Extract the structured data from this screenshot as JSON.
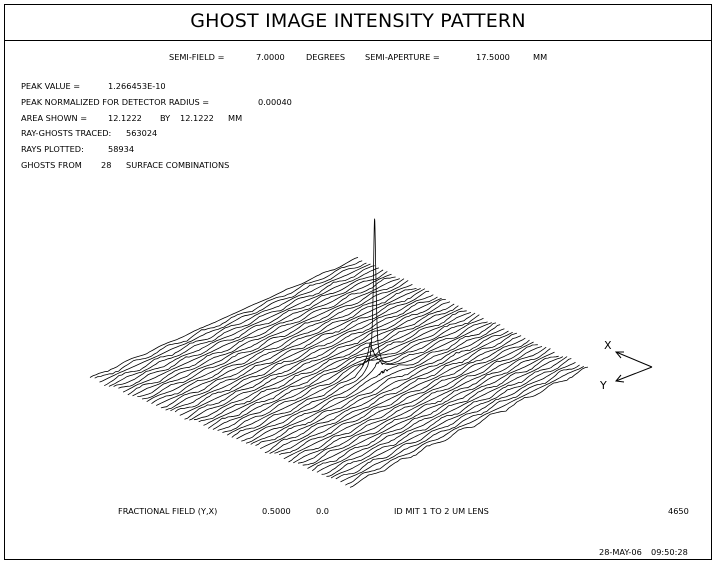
{
  "header": {
    "title": "GHOST IMAGE INTENSITY PATTERN",
    "semi_field_label": "SEMI-FIELD =",
    "semi_field_value": "7.0000",
    "semi_field_unit": "DEGREES",
    "semi_aperture_label": "SEMI-APERTURE =",
    "semi_aperture_value": "17.5000",
    "semi_aperture_unit": "MM"
  },
  "info": {
    "peak_value_label": "PEAK VALUE =",
    "peak_value": "1.266453E-10",
    "peak_normalized_label": "PEAK NORMALIZED FOR DETECTOR RADIUS =",
    "peak_normalized_value": "0.00040",
    "area_shown_label": "AREA SHOWN =",
    "area_shown_x": "12.1222",
    "area_by": "BY",
    "area_shown_y": "12.1222",
    "area_unit": "MM",
    "ray_ghosts_label": "RAY-GHOSTS TRACED:",
    "ray_ghosts_value": "563024",
    "rays_plotted_label": "RAYS PLOTTED:",
    "rays_plotted_value": "58934",
    "ghosts_from_label": "GHOSTS FROM",
    "ghosts_from_value": "28",
    "ghosts_from_suffix": "SURFACE COMBINATIONS"
  },
  "axes_triad": {
    "x_label": "X",
    "y_label": "Y"
  },
  "footer": {
    "fractional_field_label": "FRACTIONAL FIELD (Y,X)",
    "fractional_field_y": "0.5000",
    "fractional_field_x": "0.0",
    "lens_id": "ID MIT 1 TO 2 UM LENS",
    "code": "4650",
    "date": "28-MAY-06",
    "time": "09:50:28"
  },
  "chart_data": {
    "type": "surface-3d",
    "title": "GHOST IMAGE INTENSITY PATTERN",
    "grid_lines": 56,
    "peak": {
      "u": 0.55,
      "v": 0.56,
      "relative_height": 1.0
    },
    "noise_level": 0.012,
    "x_axis_label": "X",
    "y_axis_label": "Y"
  }
}
